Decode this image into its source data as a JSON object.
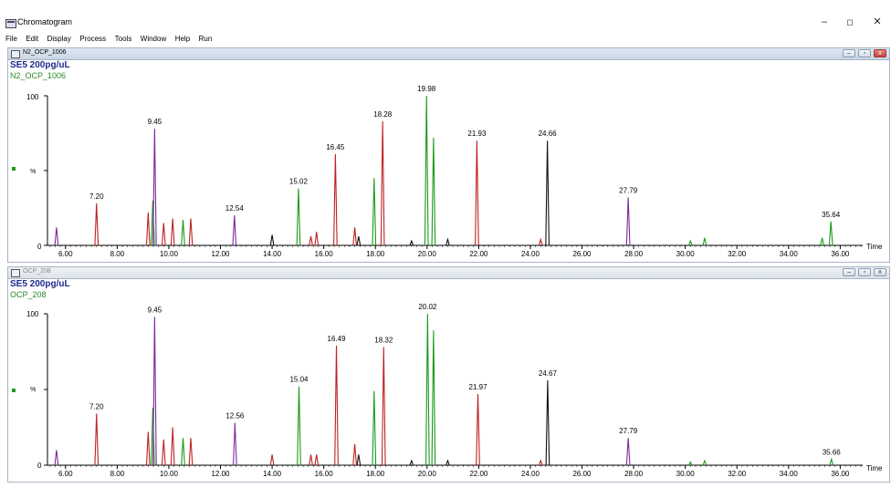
{
  "window": {
    "title": "Chromatogram",
    "minimize": "–",
    "restore": "◻",
    "close": "✕"
  },
  "menu": [
    "File",
    "Edit",
    "Display",
    "Process",
    "Tools",
    "Window",
    "Help",
    "Run"
  ],
  "colors": {
    "purple": "#7a2a9a",
    "red": "#c02020",
    "green": "#1a9a1a",
    "black": "#111111",
    "title_blue": "#1e2b8c",
    "sub_green": "#2a8a2a"
  },
  "panels": [
    {
      "window_title": "N2_OCP_1006",
      "sample": "SE5 200pg/uL",
      "data_file": "N2_OCP_1006",
      "state": "active",
      "y_label_top": "100",
      "y_label_mid": "%",
      "y_label_zero": "0",
      "x_axis_label": "Time",
      "chart_data": {
        "type": "line",
        "xlim": [
          5.3,
          36.8
        ],
        "ylim": [
          0,
          100
        ],
        "ticks": [
          "6.00",
          "8.00",
          "10.00",
          "12.00",
          "14.00",
          "16.00",
          "18.00",
          "20.00",
          "22.00",
          "24.00",
          "26.00",
          "28.00",
          "30.00",
          "32.00",
          "34.00",
          "36.00"
        ],
        "peaks": [
          {
            "rt": 5.65,
            "h": 12,
            "c": "purple"
          },
          {
            "rt": 7.2,
            "h": 28,
            "c": "red",
            "label": "7.20"
          },
          {
            "rt": 9.2,
            "h": 22,
            "c": "red"
          },
          {
            "rt": 9.38,
            "h": 30,
            "c": "green"
          },
          {
            "rt": 9.45,
            "h": 78,
            "c": "purple",
            "label": "9.45"
          },
          {
            "rt": 9.8,
            "h": 15,
            "c": "red"
          },
          {
            "rt": 10.15,
            "h": 18,
            "c": "red"
          },
          {
            "rt": 10.55,
            "h": 17,
            "c": "green"
          },
          {
            "rt": 10.85,
            "h": 18,
            "c": "red"
          },
          {
            "rt": 12.54,
            "h": 20,
            "c": "purple",
            "label": "12.54"
          },
          {
            "rt": 14.0,
            "h": 7,
            "c": "black"
          },
          {
            "rt": 15.02,
            "h": 38,
            "c": "green",
            "label": "15.02"
          },
          {
            "rt": 15.5,
            "h": 6,
            "c": "red"
          },
          {
            "rt": 15.72,
            "h": 9,
            "c": "red"
          },
          {
            "rt": 16.45,
            "h": 61,
            "c": "red",
            "label": "16.45"
          },
          {
            "rt": 17.2,
            "h": 12,
            "c": "red"
          },
          {
            "rt": 17.35,
            "h": 6,
            "c": "black"
          },
          {
            "rt": 17.95,
            "h": 45,
            "c": "green"
          },
          {
            "rt": 18.28,
            "h": 83,
            "c": "red",
            "label": "18.28"
          },
          {
            "rt": 19.4,
            "h": 3,
            "c": "black"
          },
          {
            "rt": 19.98,
            "h": 100,
            "c": "green",
            "label": "19.98"
          },
          {
            "rt": 20.25,
            "h": 72,
            "c": "green"
          },
          {
            "rt": 20.8,
            "h": 4,
            "c": "black"
          },
          {
            "rt": 21.93,
            "h": 70,
            "c": "red",
            "label": "21.93"
          },
          {
            "rt": 24.4,
            "h": 4,
            "c": "red"
          },
          {
            "rt": 24.66,
            "h": 70,
            "c": "black",
            "label": "24.66"
          },
          {
            "rt": 27.79,
            "h": 32,
            "c": "purple",
            "label": "27.79"
          },
          {
            "rt": 30.2,
            "h": 3,
            "c": "green"
          },
          {
            "rt": 30.75,
            "h": 5,
            "c": "green"
          },
          {
            "rt": 35.3,
            "h": 5,
            "c": "green"
          },
          {
            "rt": 35.64,
            "h": 16,
            "c": "green",
            "label": "35.64"
          }
        ]
      }
    },
    {
      "window_title": "OCP_208",
      "sample": "SE5 200pg/uL",
      "data_file": "OCP_208",
      "state": "inactive",
      "y_label_top": "100",
      "y_label_mid": "%",
      "y_label_zero": "0",
      "x_axis_label": "Time",
      "chart_data": {
        "type": "line",
        "xlim": [
          5.3,
          36.8
        ],
        "ylim": [
          0,
          100
        ],
        "ticks": [
          "6.00",
          "8.00",
          "10.00",
          "12.00",
          "14.00",
          "16.00",
          "18.00",
          "20.00",
          "22.00",
          "24.00",
          "26.00",
          "28.00",
          "30.00",
          "32.00",
          "34.00",
          "36.00"
        ],
        "peaks": [
          {
            "rt": 5.65,
            "h": 10,
            "c": "purple"
          },
          {
            "rt": 7.2,
            "h": 34,
            "c": "red",
            "label": "7.20"
          },
          {
            "rt": 9.2,
            "h": 22,
            "c": "red"
          },
          {
            "rt": 9.38,
            "h": 38,
            "c": "green"
          },
          {
            "rt": 9.45,
            "h": 98,
            "c": "purple",
            "label": "9.45"
          },
          {
            "rt": 9.8,
            "h": 17,
            "c": "red"
          },
          {
            "rt": 10.15,
            "h": 25,
            "c": "red"
          },
          {
            "rt": 10.55,
            "h": 18,
            "c": "green"
          },
          {
            "rt": 10.85,
            "h": 18,
            "c": "red"
          },
          {
            "rt": 12.56,
            "h": 28,
            "c": "purple",
            "label": "12.56"
          },
          {
            "rt": 14.0,
            "h": 7,
            "c": "red"
          },
          {
            "rt": 15.04,
            "h": 52,
            "c": "green",
            "label": "15.04"
          },
          {
            "rt": 15.5,
            "h": 7,
            "c": "red"
          },
          {
            "rt": 15.72,
            "h": 7,
            "c": "red"
          },
          {
            "rt": 16.49,
            "h": 79,
            "c": "red",
            "label": "16.49"
          },
          {
            "rt": 17.2,
            "h": 14,
            "c": "red"
          },
          {
            "rt": 17.35,
            "h": 7,
            "c": "black"
          },
          {
            "rt": 17.95,
            "h": 49,
            "c": "green"
          },
          {
            "rt": 18.32,
            "h": 78,
            "c": "red",
            "label": "18.32"
          },
          {
            "rt": 19.4,
            "h": 3,
            "c": "black"
          },
          {
            "rt": 20.02,
            "h": 100,
            "c": "green",
            "label": "20.02"
          },
          {
            "rt": 20.25,
            "h": 89,
            "c": "green"
          },
          {
            "rt": 20.8,
            "h": 3,
            "c": "black"
          },
          {
            "rt": 21.97,
            "h": 47,
            "c": "red",
            "label": "21.97"
          },
          {
            "rt": 24.4,
            "h": 3,
            "c": "red"
          },
          {
            "rt": 24.67,
            "h": 56,
            "c": "black",
            "label": "24.67"
          },
          {
            "rt": 27.79,
            "h": 18,
            "c": "purple",
            "label": "27.79"
          },
          {
            "rt": 30.2,
            "h": 2,
            "c": "green"
          },
          {
            "rt": 30.75,
            "h": 3,
            "c": "green"
          },
          {
            "rt": 35.66,
            "h": 4,
            "c": "green",
            "label": "35.66"
          }
        ]
      }
    }
  ]
}
